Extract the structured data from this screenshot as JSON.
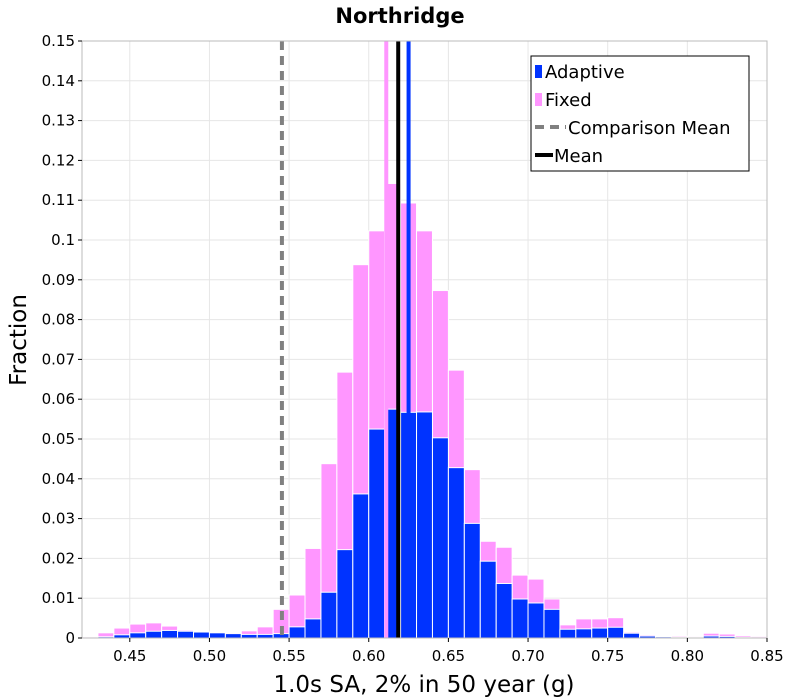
{
  "chart_data": {
    "type": "bar",
    "title": "Northridge",
    "xlabel": "1.0s SA, 2% in 50 year (g)",
    "ylabel": "Fraction",
    "xlim": [
      0.42,
      0.85
    ],
    "ylim": [
      0,
      0.15
    ],
    "bin_width": 0.01,
    "grid": true,
    "legend_position": "top-right",
    "x_ticks": [
      {
        "value": 0.45,
        "label": "0.45"
      },
      {
        "value": 0.5,
        "label": "0.50"
      },
      {
        "value": 0.55,
        "label": "0.55"
      },
      {
        "value": 0.6,
        "label": "0.60"
      },
      {
        "value": 0.65,
        "label": "0.65"
      },
      {
        "value": 0.7,
        "label": "0.70"
      },
      {
        "value": 0.75,
        "label": "0.75"
      },
      {
        "value": 0.8,
        "label": "0.80"
      },
      {
        "value": 0.85,
        "label": "0.85"
      }
    ],
    "y_ticks": [
      {
        "value": 0,
        "label": "0"
      },
      {
        "value": 0.01,
        "label": "0.01"
      },
      {
        "value": 0.02,
        "label": "0.02"
      },
      {
        "value": 0.03,
        "label": "0.03"
      },
      {
        "value": 0.04,
        "label": "0.04"
      },
      {
        "value": 0.05,
        "label": "0.05"
      },
      {
        "value": 0.06,
        "label": "0.06"
      },
      {
        "value": 0.07,
        "label": "0.07"
      },
      {
        "value": 0.08,
        "label": "0.08"
      },
      {
        "value": 0.09,
        "label": "0.09"
      },
      {
        "value": 0.1,
        "label": "0.1"
      },
      {
        "value": 0.11,
        "label": "0.11"
      },
      {
        "value": 0.12,
        "label": "0.12"
      },
      {
        "value": 0.13,
        "label": "0.13"
      },
      {
        "value": 0.14,
        "label": "0.14"
      },
      {
        "value": 0.15,
        "label": "0.15"
      }
    ],
    "bin_centers": [
      0.425,
      0.435,
      0.445,
      0.455,
      0.465,
      0.475,
      0.485,
      0.495,
      0.505,
      0.515,
      0.525,
      0.535,
      0.545,
      0.555,
      0.565,
      0.575,
      0.585,
      0.595,
      0.605,
      0.615,
      0.625,
      0.635,
      0.645,
      0.655,
      0.665,
      0.675,
      0.685,
      0.695,
      0.705,
      0.715,
      0.725,
      0.735,
      0.745,
      0.755,
      0.765,
      0.775,
      0.785,
      0.795,
      0.805,
      0.815,
      0.825,
      0.835,
      0.845
    ],
    "series": [
      {
        "name": "Fixed",
        "color": "#ff96ff",
        "values": [
          0.0003,
          0.0013,
          0.0025,
          0.0035,
          0.0038,
          0.003,
          0.002,
          0.0015,
          0.0012,
          0.0013,
          0.0018,
          0.0028,
          0.0072,
          0.0108,
          0.0225,
          0.0438,
          0.0668,
          0.0938,
          0.1023,
          0.1142,
          0.1093,
          0.1023,
          0.0873,
          0.0673,
          0.0423,
          0.0243,
          0.0228,
          0.0158,
          0.0148,
          0.0098,
          0.0033,
          0.0048,
          0.0048,
          0.0051,
          0.0015,
          0.0008,
          0.0005,
          0.0005,
          0.0004,
          0.0012,
          0.001,
          0.0006,
          0.0004
        ]
      },
      {
        "name": "Adaptive",
        "color": "#0033ff",
        "values": [
          0.0001,
          0.0003,
          0.0008,
          0.0013,
          0.0017,
          0.0019,
          0.0017,
          0.0015,
          0.0013,
          0.0011,
          0.0009,
          0.0009,
          0.0011,
          0.0028,
          0.0048,
          0.0115,
          0.0222,
          0.0362,
          0.0525,
          0.0575,
          0.0567,
          0.0568,
          0.0503,
          0.0428,
          0.0288,
          0.0193,
          0.0137,
          0.0098,
          0.0088,
          0.0072,
          0.0022,
          0.0023,
          0.0025,
          0.0027,
          0.0012,
          0.0005,
          0.0003,
          0.0002,
          0.0002,
          0.0005,
          0.0004,
          0.0002,
          0.0001
        ]
      }
    ],
    "vertical_lines": [
      {
        "name": "Comparison Mean",
        "x": 0.5455,
        "color": "#808080",
        "style": "dashed"
      },
      {
        "name": "Mean",
        "x": 0.6185,
        "color": "#000000",
        "style": "solid"
      },
      {
        "name": "Adaptive mean",
        "x": 0.625,
        "color": "#0033ff",
        "style": "solid"
      },
      {
        "name": "Fixed mean",
        "x": 0.611,
        "color": "#ff96ff",
        "style": "solid"
      }
    ],
    "legend": [
      {
        "label": "Adaptive",
        "kind": "square",
        "color": "#0033ff"
      },
      {
        "label": "Fixed",
        "kind": "square",
        "color": "#ff96ff"
      },
      {
        "label": "Comparison Mean",
        "kind": "dash",
        "color": "#808080"
      },
      {
        "label": "Mean",
        "kind": "line",
        "color": "#000000"
      }
    ]
  }
}
